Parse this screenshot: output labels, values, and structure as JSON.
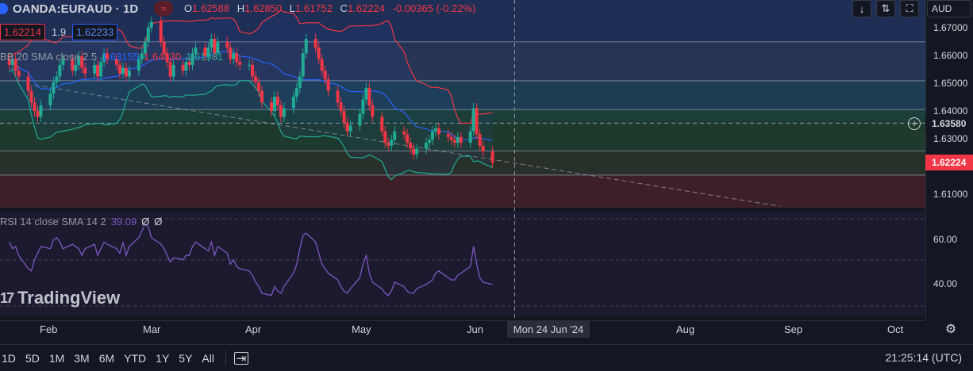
{
  "header": {
    "symbol": "OANDA:EURAUD · 1D",
    "live_badge": "≈",
    "ohlc": {
      "o_label": "O",
      "o": "1.62588",
      "h_label": "H",
      "h": "1.62850",
      "l_label": "L",
      "l": "1.61752",
      "c_label": "C",
      "c": "1.62224",
      "change": "-0.00365 (-0.22%)"
    }
  },
  "order": {
    "bid": "1.62214",
    "spread": "1.9",
    "ask": "1.62233"
  },
  "bb_legend": {
    "label": "BB 20 SMA close 2.5",
    "basis": "1.63155",
    "upper": "1.64330",
    "lower": "1.61981"
  },
  "rsi_legend": {
    "label": "RSI 14 close SMA 14 2",
    "value": "39.09",
    "na1": "Ø",
    "na2": "Ø"
  },
  "watermark": {
    "text": "TradingView"
  },
  "toolbar": {
    "currency": "AUD",
    "arrow_icon": "↓",
    "fit_icon": "⇅",
    "fullscreen_icon": "⛶"
  },
  "price_axis": {
    "ticks": [
      "1.67000",
      "1.66000",
      "1.65000",
      "1.64000",
      "1.63000",
      "1.61000"
    ],
    "crosshair_price": "1.63580",
    "last_price": "1.62224",
    "rsi_ticks": [
      "60.00",
      "40.00"
    ]
  },
  "time_axis": {
    "labels": [
      "Feb",
      "Mar",
      "Apr",
      "May",
      "Jun",
      "Aug",
      "Sep",
      "Oct"
    ],
    "crosshair_date": "Mon 24 Jun '24"
  },
  "bottom_bar": {
    "ranges": [
      "1D",
      "5D",
      "1M",
      "3M",
      "6M",
      "YTD",
      "1Y",
      "5Y",
      "All"
    ],
    "clock": "21:25:14 (UTC)"
  },
  "colors": {
    "up": "#22ab94",
    "down": "#f23645",
    "basis": "#2962ff",
    "rsi": "#7e57c2",
    "background": "#131722"
  },
  "chart_data": {
    "type": "candlestick",
    "price_range": [
      1.6065,
      1.6785
    ],
    "rsi_range": [
      25,
      72
    ],
    "bollinger": {
      "period": 20,
      "stddev": 2.5
    },
    "zones": [
      {
        "from": 1.664,
        "to": 1.6785,
        "color": "#1e2e55"
      },
      {
        "from": 1.6505,
        "to": 1.664,
        "color": "#263556"
      },
      {
        "from": 1.6405,
        "to": 1.6505,
        "color": "#1d3d52"
      },
      {
        "from": 1.6355,
        "to": 1.6405,
        "color": "#1b3e38"
      },
      {
        "from": 1.6262,
        "to": 1.6355,
        "color": "#1e3a2d"
      },
      {
        "from": 1.6178,
        "to": 1.6262,
        "color": "#28302a"
      },
      {
        "from": 1.6065,
        "to": 1.6178,
        "color": "#3d2027"
      }
    ],
    "horizontal_levels": [
      1.664,
      1.6505,
      1.6405,
      1.6262,
      1.6178
    ],
    "crosshair_level": 1.6358,
    "trendline": [
      [
        "2024-01-24",
        1.649
      ],
      [
        "2024-09-16",
        1.607
      ]
    ],
    "dates": [
      "2024-01-16",
      "2024-01-17",
      "2024-01-18",
      "2024-01-19",
      "2024-01-22",
      "2024-01-23",
      "2024-01-24",
      "2024-01-25",
      "2024-01-26",
      "2024-01-29",
      "2024-01-30",
      "2024-01-31",
      "2024-02-01",
      "2024-02-02",
      "2024-02-05",
      "2024-02-06",
      "2024-02-07",
      "2024-02-08",
      "2024-02-09",
      "2024-02-12",
      "2024-02-13",
      "2024-02-14",
      "2024-02-15",
      "2024-02-16",
      "2024-02-19",
      "2024-02-20",
      "2024-02-21",
      "2024-02-22",
      "2024-02-23",
      "2024-02-26",
      "2024-02-27",
      "2024-02-28",
      "2024-02-29",
      "2024-03-01",
      "2024-03-04",
      "2024-03-05",
      "2024-03-06",
      "2024-03-07",
      "2024-03-08",
      "2024-03-11",
      "2024-03-12",
      "2024-03-13",
      "2024-03-14",
      "2024-03-15",
      "2024-03-18",
      "2024-03-19",
      "2024-03-20",
      "2024-03-21",
      "2024-03-22",
      "2024-03-25",
      "2024-03-26",
      "2024-03-27",
      "2024-03-28",
      "2024-03-29",
      "2024-04-01",
      "2024-04-02",
      "2024-04-03",
      "2024-04-04",
      "2024-04-05",
      "2024-04-08",
      "2024-04-09",
      "2024-04-10",
      "2024-04-11",
      "2024-04-12",
      "2024-04-15",
      "2024-04-16",
      "2024-04-17",
      "2024-04-18",
      "2024-04-19",
      "2024-04-22",
      "2024-04-23",
      "2024-04-24",
      "2024-04-25",
      "2024-04-26",
      "2024-04-29",
      "2024-04-30",
      "2024-05-01",
      "2024-05-02",
      "2024-05-03",
      "2024-05-06",
      "2024-05-07",
      "2024-05-08",
      "2024-05-09",
      "2024-05-10",
      "2024-05-13",
      "2024-05-14",
      "2024-05-15",
      "2024-05-16",
      "2024-05-17",
      "2024-05-20",
      "2024-05-21",
      "2024-05-22",
      "2024-05-23",
      "2024-05-24",
      "2024-05-27",
      "2024-05-28",
      "2024-05-29",
      "2024-05-30",
      "2024-05-31",
      "2024-06-03",
      "2024-06-04",
      "2024-06-05",
      "2024-06-06",
      "2024-06-07",
      "2024-06-10",
      "2024-06-11",
      "2024-06-12",
      "2024-06-13",
      "2024-06-14",
      "2024-06-17"
    ],
    "close": [
      1.656,
      1.658,
      1.654,
      1.652,
      1.647,
      1.643,
      1.64,
      1.638,
      1.642,
      1.646,
      1.65,
      1.652,
      1.656,
      1.658,
      1.654,
      1.656,
      1.659,
      1.655,
      1.653,
      1.656,
      1.652,
      1.657,
      1.66,
      1.658,
      1.656,
      1.653,
      1.655,
      1.652,
      1.654,
      1.658,
      1.66,
      1.664,
      1.669,
      1.671,
      1.664,
      1.66,
      1.657,
      1.652,
      1.656,
      1.654,
      1.657,
      1.656,
      1.66,
      1.662,
      1.659,
      1.662,
      1.665,
      1.66,
      1.664,
      1.662,
      1.658,
      1.66,
      1.657,
      1.656,
      1.656,
      1.652,
      1.65,
      1.647,
      1.643,
      1.64,
      1.645,
      1.642,
      1.638,
      1.641,
      1.645,
      1.648,
      1.652,
      1.66,
      1.665,
      1.662,
      1.658,
      1.654,
      1.651,
      1.647,
      1.643,
      1.64,
      1.636,
      1.633,
      1.635,
      1.639,
      1.644,
      1.648,
      1.642,
      1.638,
      1.633,
      1.629,
      1.628,
      1.63,
      1.633,
      1.632,
      1.629,
      1.627,
      1.625,
      1.627,
      1.629,
      1.63,
      1.633,
      1.634,
      1.632,
      1.631,
      1.63,
      1.629,
      1.631,
      1.629,
      1.633,
      1.641,
      1.632,
      1.628,
      1.626,
      1.6222
    ],
    "rsi": [
      58,
      55,
      56,
      52,
      46,
      45,
      50,
      53,
      56,
      55,
      59,
      60,
      58,
      55,
      57,
      56,
      55,
      52,
      55,
      57,
      52,
      55,
      58,
      57,
      55,
      53,
      58,
      52,
      56,
      60,
      63,
      66,
      65,
      60,
      57,
      55,
      52,
      49,
      51,
      50,
      52,
      52,
      56,
      58,
      55,
      54,
      58,
      52,
      56,
      53,
      48,
      50,
      47,
      46,
      45,
      43,
      40,
      38,
      35,
      34,
      38,
      36,
      35,
      38,
      44,
      48,
      55,
      61,
      62,
      58,
      53,
      48,
      46,
      44,
      41,
      38,
      36,
      35,
      37,
      42,
      48,
      52,
      44,
      40,
      37,
      35,
      34,
      36,
      40,
      38,
      36,
      35,
      35,
      37,
      39,
      40,
      41,
      44,
      45,
      42,
      41,
      41,
      43,
      44,
      47,
      56,
      48,
      42,
      40,
      39
    ]
  }
}
